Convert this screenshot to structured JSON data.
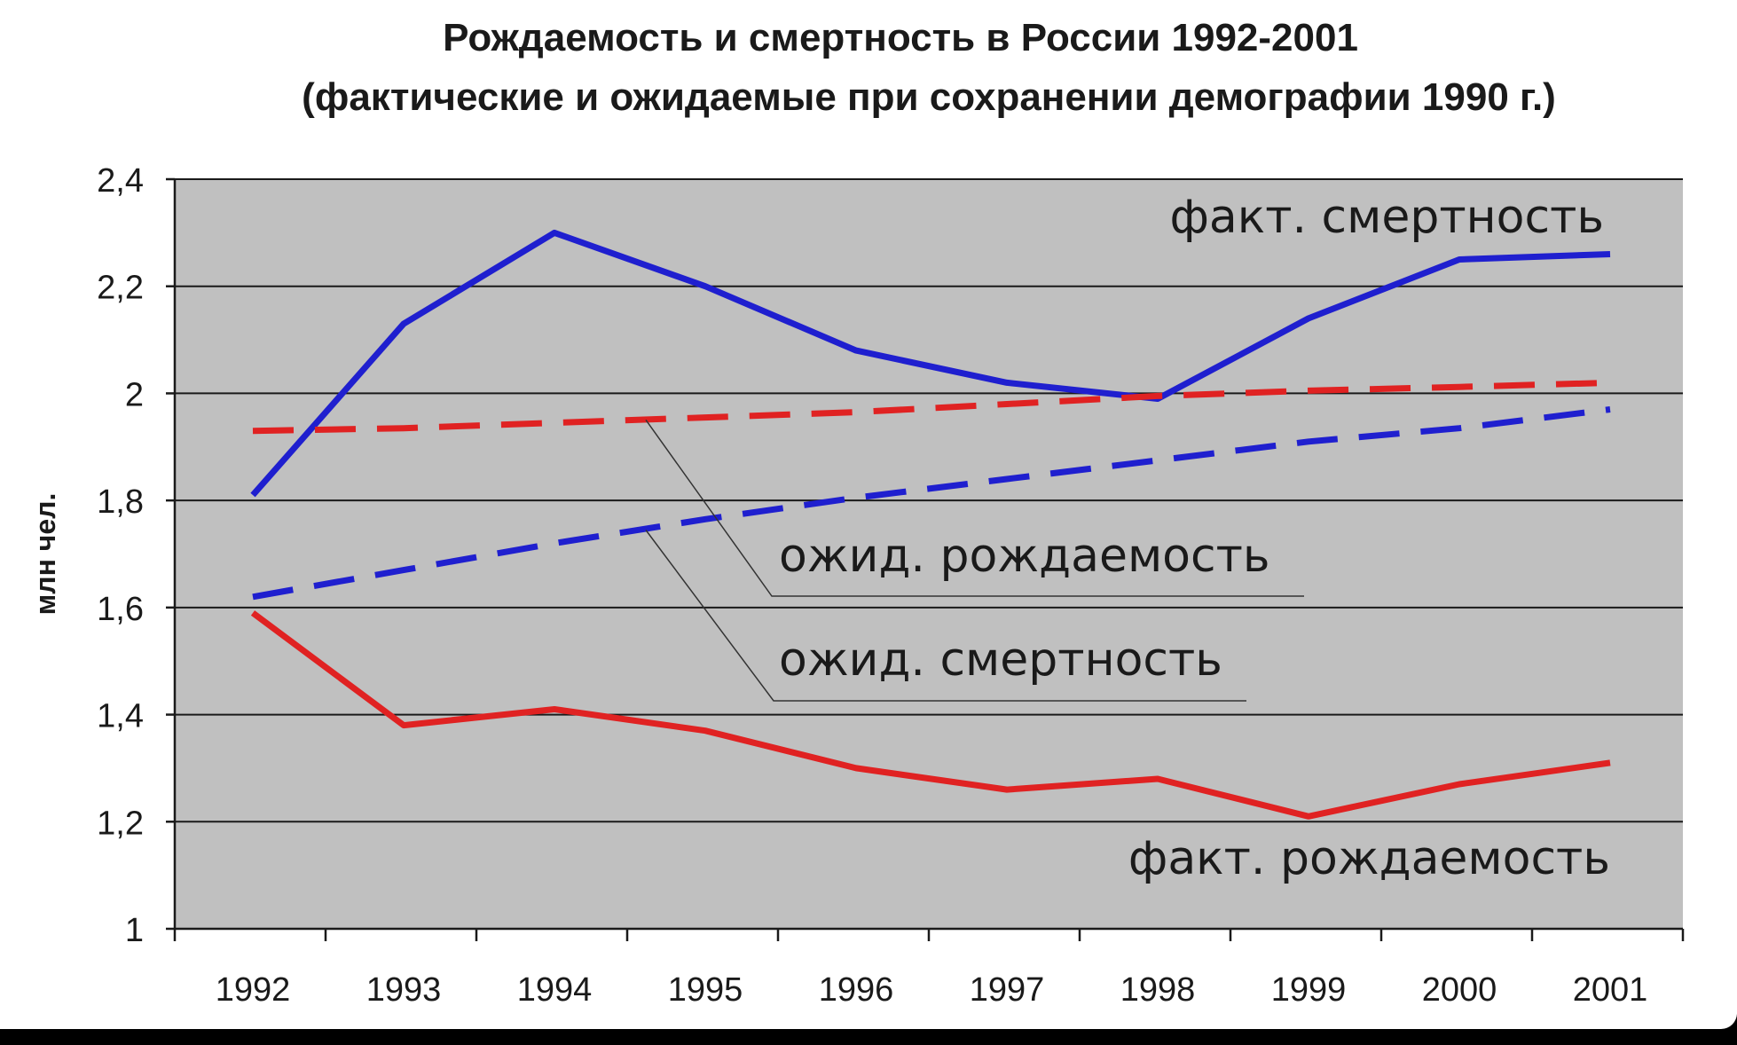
{
  "chart_data": {
    "type": "line",
    "title": "Рождаемость и смертность в России 1992-2001",
    "subtitle": "(фактические и ожидаемые при сохранении демографии 1990 г.)",
    "xlabel": "",
    "ylabel": "млн чел.",
    "ylim": [
      1,
      2.4
    ],
    "yticks": [
      "1",
      "1,2",
      "1,4",
      "1,6",
      "1,8",
      "2",
      "2,2",
      "2,4"
    ],
    "ytick_values": [
      1,
      1.2,
      1.4,
      1.6,
      1.8,
      2,
      2.2,
      2.4
    ],
    "categories": [
      "1992",
      "1993",
      "1994",
      "1995",
      "1996",
      "1997",
      "1998",
      "1999",
      "2000",
      "2001"
    ],
    "grid": true,
    "plot_background": "#c0c0c0",
    "series": [
      {
        "key": "fact_death",
        "name": "факт. смертность",
        "color": "#1f1fcf",
        "style": "solid",
        "values": [
          1.81,
          2.13,
          2.3,
          2.2,
          2.08,
          2.02,
          1.99,
          2.14,
          2.25,
          2.26
        ]
      },
      {
        "key": "exp_birth",
        "name": "ожид. рождаемость",
        "color": "#e02222",
        "style": "dashed",
        "values": [
          1.93,
          1.935,
          1.945,
          1.955,
          1.965,
          1.98,
          1.995,
          2.005,
          2.012,
          2.02
        ]
      },
      {
        "key": "exp_death",
        "name": "ожид. смертность",
        "color": "#1f1fcf",
        "style": "dashed",
        "values": [
          1.62,
          1.67,
          1.72,
          1.765,
          1.805,
          1.84,
          1.875,
          1.91,
          1.935,
          1.97
        ]
      },
      {
        "key": "fact_birth",
        "name": "факт. рождаемость",
        "color": "#e02222",
        "style": "solid",
        "values": [
          1.59,
          1.38,
          1.41,
          1.37,
          1.3,
          1.26,
          1.28,
          1.21,
          1.27,
          1.31
        ]
      }
    ]
  }
}
